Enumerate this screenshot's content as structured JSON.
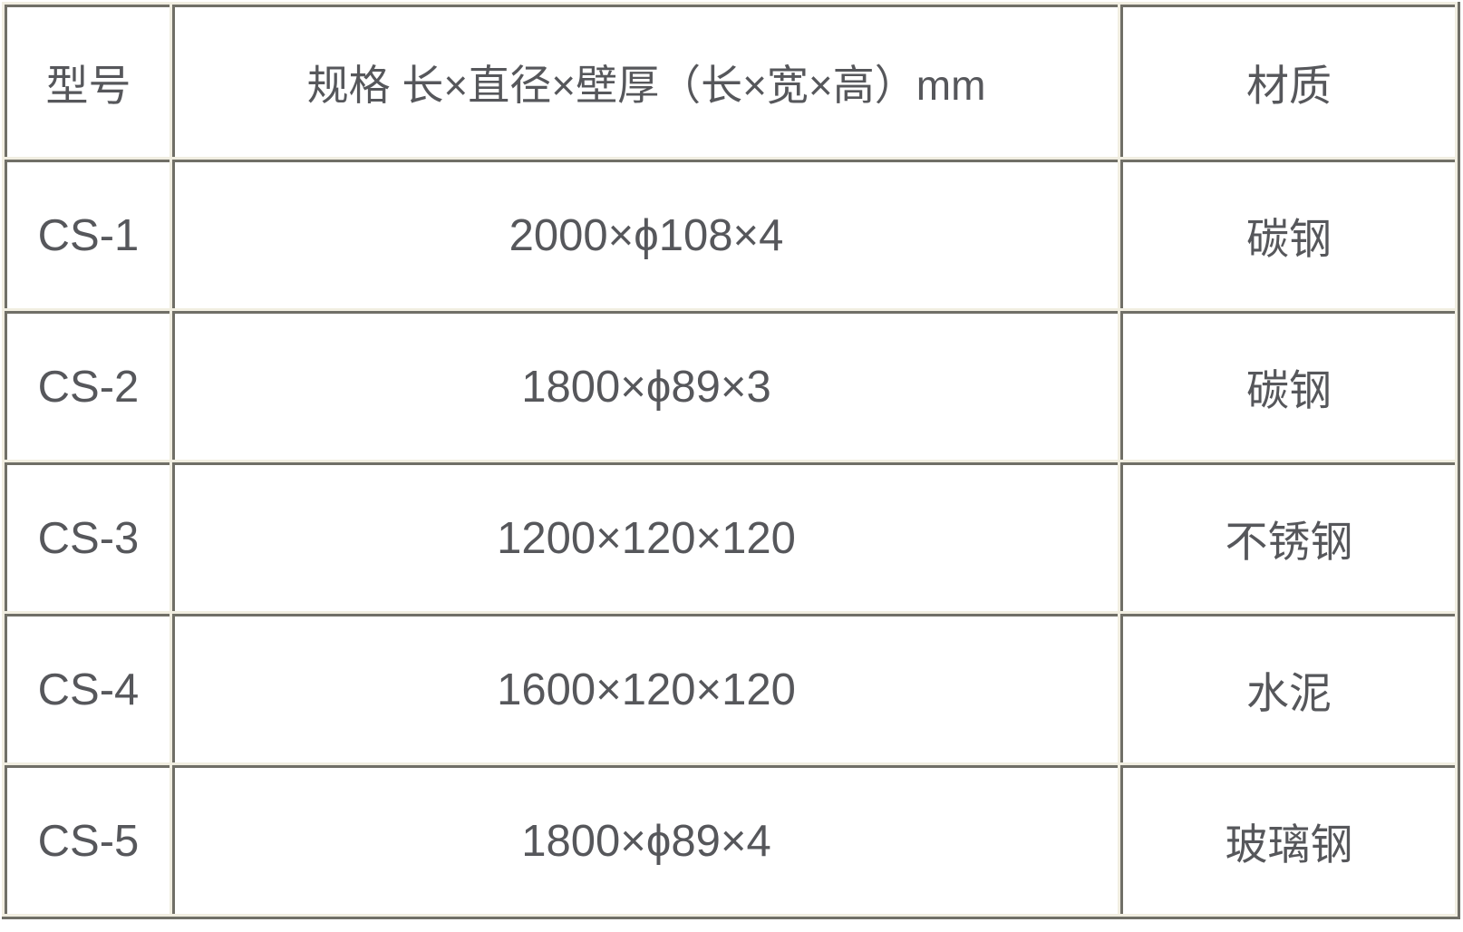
{
  "colors": {
    "cell_background": "#ffffff",
    "gap_background": "#f1eee1",
    "border": "#706f67",
    "text": "#56575b"
  },
  "table": {
    "columns": [
      {
        "key": "model",
        "label": "型号"
      },
      {
        "key": "spec",
        "label": "规格 长×直径×壁厚（长×宽×高）mm"
      },
      {
        "key": "material",
        "label": "材质"
      }
    ],
    "rows": [
      {
        "model": "CS-1",
        "spec": "2000×ϕ108×4",
        "material": "碳钢"
      },
      {
        "model": "CS-2",
        "spec": "1800×ϕ89×3",
        "material": "碳钢"
      },
      {
        "model": "CS-3",
        "spec": "1200×120×120",
        "material": "不锈钢"
      },
      {
        "model": "CS-4",
        "spec": "1600×120×120",
        "material": "水泥"
      },
      {
        "model": "CS-5",
        "spec": "1800×ϕ89×4",
        "material": "玻璃钢"
      }
    ]
  }
}
